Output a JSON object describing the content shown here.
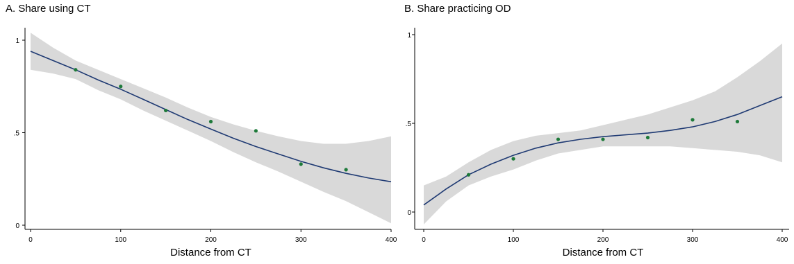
{
  "chart_data": [
    {
      "type": "line",
      "title": "A. Share using CT",
      "xlabel": "Distance from CT",
      "ylabel": "",
      "xlim": [
        0,
        400
      ],
      "ylim": [
        0,
        1
      ],
      "x_ticks": [
        0,
        100,
        200,
        300,
        400
      ],
      "x_tick_labels": [
        "0",
        "100",
        "200",
        "300",
        "400"
      ],
      "y_ticks": [
        0,
        0.5,
        1
      ],
      "y_tick_labels": [
        "0",
        ".5",
        "1"
      ],
      "grid": false,
      "colors": {
        "fit": "#1f3a73",
        "ci": "#d9d9d9",
        "points": "#1e7a3a"
      },
      "points": {
        "x": [
          50,
          100,
          150,
          200,
          250,
          300,
          350
        ],
        "y": [
          0.84,
          0.75,
          0.62,
          0.56,
          0.51,
          0.33,
          0.3
        ]
      },
      "fit": {
        "x": [
          0,
          25,
          50,
          75,
          100,
          125,
          150,
          175,
          200,
          225,
          250,
          275,
          300,
          325,
          350,
          375,
          400
        ],
        "y": [
          0.94,
          0.89,
          0.84,
          0.785,
          0.735,
          0.68,
          0.625,
          0.57,
          0.52,
          0.47,
          0.425,
          0.385,
          0.345,
          0.31,
          0.28,
          0.255,
          0.235
        ]
      },
      "ci_upper": {
        "x": [
          0,
          25,
          50,
          75,
          100,
          125,
          150,
          175,
          200,
          225,
          250,
          275,
          300,
          325,
          350,
          375,
          400
        ],
        "y": [
          1.04,
          0.96,
          0.89,
          0.84,
          0.79,
          0.74,
          0.69,
          0.635,
          0.585,
          0.545,
          0.51,
          0.48,
          0.455,
          0.44,
          0.44,
          0.455,
          0.48
        ]
      },
      "ci_lower": {
        "x": [
          0,
          25,
          50,
          75,
          100,
          125,
          150,
          175,
          200,
          225,
          250,
          275,
          300,
          325,
          350,
          375,
          400
        ],
        "y": [
          0.84,
          0.82,
          0.79,
          0.73,
          0.68,
          0.62,
          0.565,
          0.51,
          0.455,
          0.395,
          0.34,
          0.29,
          0.235,
          0.18,
          0.13,
          0.07,
          0.01
        ]
      }
    },
    {
      "type": "line",
      "title": "B. Share practicing OD",
      "xlabel": "Distance from CT",
      "ylabel": "",
      "xlim": [
        0,
        400
      ],
      "ylim": [
        0,
        1
      ],
      "x_ticks": [
        0,
        100,
        200,
        300,
        400
      ],
      "x_tick_labels": [
        "0",
        "100",
        "200",
        "300",
        "400"
      ],
      "y_ticks": [
        0,
        0.5,
        1
      ],
      "y_tick_labels": [
        "0",
        ".5",
        "1"
      ],
      "grid": false,
      "colors": {
        "fit": "#1f3a73",
        "ci": "#d9d9d9",
        "points": "#1e7a3a"
      },
      "points": {
        "x": [
          50,
          100,
          150,
          200,
          250,
          300,
          350
        ],
        "y": [
          0.21,
          0.3,
          0.41,
          0.41,
          0.42,
          0.52,
          0.51
        ]
      },
      "fit": {
        "x": [
          0,
          25,
          50,
          75,
          100,
          125,
          150,
          175,
          200,
          225,
          250,
          275,
          300,
          325,
          350,
          375,
          400
        ],
        "y": [
          0.04,
          0.13,
          0.21,
          0.27,
          0.32,
          0.36,
          0.39,
          0.41,
          0.425,
          0.435,
          0.445,
          0.46,
          0.48,
          0.51,
          0.55,
          0.6,
          0.65
        ]
      },
      "ci_upper": {
        "x": [
          0,
          25,
          50,
          75,
          100,
          125,
          150,
          175,
          200,
          225,
          250,
          275,
          300,
          325,
          350,
          375,
          400
        ],
        "y": [
          0.15,
          0.2,
          0.28,
          0.35,
          0.4,
          0.43,
          0.445,
          0.46,
          0.49,
          0.52,
          0.55,
          0.59,
          0.63,
          0.68,
          0.76,
          0.85,
          0.95
        ]
      },
      "ci_lower": {
        "x": [
          0,
          25,
          50,
          75,
          100,
          125,
          150,
          175,
          200,
          225,
          250,
          275,
          300,
          325,
          350,
          375,
          400
        ],
        "y": [
          -0.07,
          0.06,
          0.15,
          0.2,
          0.24,
          0.29,
          0.33,
          0.35,
          0.37,
          0.37,
          0.37,
          0.37,
          0.36,
          0.35,
          0.34,
          0.32,
          0.28
        ]
      }
    }
  ]
}
